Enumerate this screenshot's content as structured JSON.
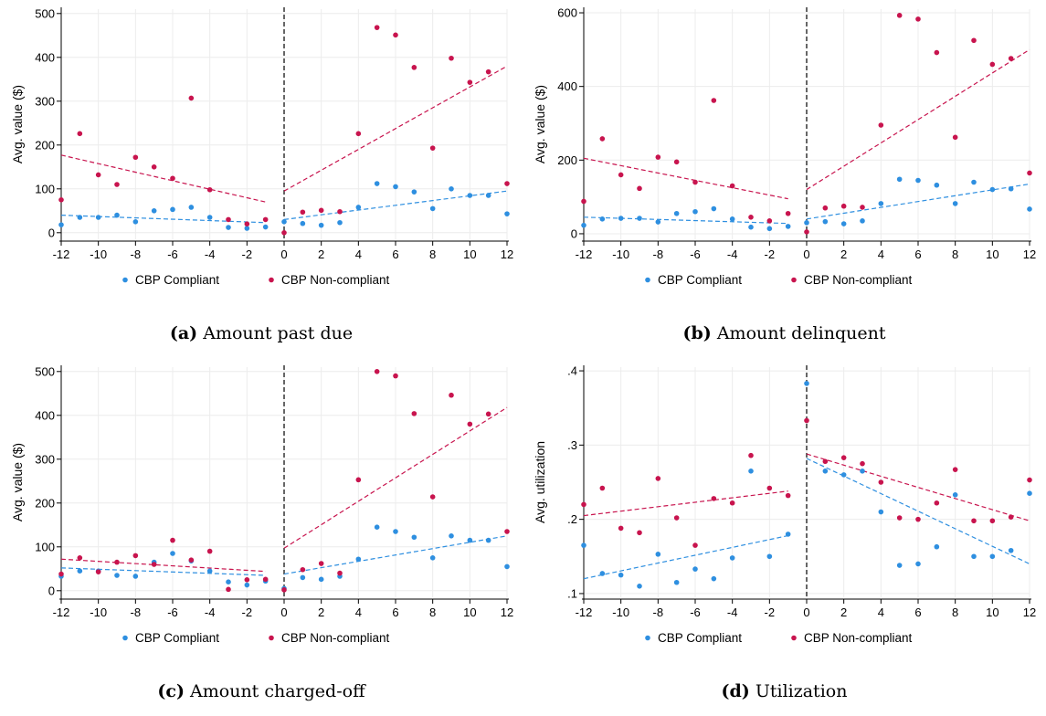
{
  "colors": {
    "compliant": "#2e8fe0",
    "noncompliant": "#c8144e",
    "grid": "#ececec",
    "axis": "#000000"
  },
  "panels": [
    {
      "label": "(a)",
      "title": "Amount past due",
      "chart_data": {
        "type": "scatter",
        "ylabel": "Avg. value ($)",
        "xlim": [
          -12,
          12
        ],
        "ylim": [
          -15,
          510
        ],
        "xticks": [
          -12,
          -10,
          -8,
          -6,
          -4,
          -2,
          0,
          2,
          4,
          6,
          8,
          10,
          12
        ],
        "yticks": [
          0,
          100,
          200,
          300,
          400,
          500
        ],
        "ytick_labels": [
          "0",
          "100",
          "200",
          "300",
          "400",
          "500"
        ],
        "cutoff": 0,
        "series": [
          {
            "name": "CBP Compliant",
            "color_key": "compliant",
            "x": [
              -12,
              -11,
              -10,
              -9,
              -8,
              -7,
              -6,
              -5,
              -4,
              -3,
              -2,
              -1,
              0,
              1,
              2,
              3,
              4,
              5,
              6,
              7,
              8,
              9,
              10,
              11,
              12
            ],
            "y": [
              18,
              35,
              35,
              40,
              25,
              50,
              53,
              58,
              35,
              12,
              10,
              13,
              25,
              21,
              17,
              23,
              58,
              112,
              105,
              93,
              55,
              100,
              85,
              85,
              43
            ],
            "fit": [
              [
                -12,
                40
              ],
              [
                -1,
                23
              ],
              [
                0,
                30
              ],
              [
                12,
                95
              ]
            ]
          },
          {
            "name": "CBP Non-compliant",
            "color_key": "noncompliant",
            "x": [
              -12,
              -11,
              -10,
              -9,
              -8,
              -7,
              -6,
              -5,
              -4,
              -3,
              -2,
              -1,
              0,
              1,
              2,
              3,
              4,
              5,
              6,
              7,
              8,
              9,
              10,
              11,
              12
            ],
            "y": [
              75,
              226,
              132,
              110,
              172,
              150,
              124,
              307,
              98,
              30,
              20,
              30,
              0,
              47,
              51,
              48,
              226,
              468,
              451,
              377,
              193,
              398,
              343,
              367,
              112
            ],
            "fit": [
              [
                -12,
                177
              ],
              [
                -1,
                70
              ],
              [
                0,
                95
              ],
              [
                12,
                380
              ]
            ]
          }
        ]
      }
    },
    {
      "label": "(b)",
      "title": "Amount delinquent",
      "chart_data": {
        "type": "scatter",
        "ylabel": "Avg. value ($)",
        "xlim": [
          -12,
          12
        ],
        "ylim": [
          -15,
          610
        ],
        "xticks": [
          -12,
          -10,
          -8,
          -6,
          -4,
          -2,
          0,
          2,
          4,
          6,
          8,
          10,
          12
        ],
        "yticks": [
          0,
          200,
          400,
          600
        ],
        "ytick_labels": [
          "0",
          "200",
          "400",
          "600"
        ],
        "cutoff": 0,
        "series": [
          {
            "name": "CBP Compliant",
            "color_key": "compliant",
            "x": [
              -12,
              -11,
              -10,
              -9,
              -8,
              -7,
              -6,
              -5,
              -4,
              -3,
              -2,
              -1,
              0,
              1,
              2,
              3,
              4,
              5,
              6,
              7,
              8,
              9,
              10,
              11,
              12
            ],
            "y": [
              23,
              40,
              42,
              42,
              32,
              55,
              60,
              68,
              40,
              18,
              14,
              20,
              30,
              33,
              27,
              35,
              82,
              148,
              145,
              132,
              82,
              140,
              120,
              122,
              67
            ],
            "fit": [
              [
                -12,
                45
              ],
              [
                -1,
                28
              ],
              [
                0,
                40
              ],
              [
                12,
                135
              ]
            ]
          },
          {
            "name": "CBP Non-compliant",
            "color_key": "noncompliant",
            "x": [
              -12,
              -11,
              -10,
              -9,
              -8,
              -7,
              -6,
              -5,
              -4,
              -3,
              -2,
              -1,
              0,
              1,
              2,
              3,
              4,
              5,
              6,
              7,
              8,
              9,
              10,
              11,
              12
            ],
            "y": [
              88,
              258,
              160,
              123,
              208,
              195,
              140,
              362,
              130,
              45,
              35,
              55,
              5,
              70,
              75,
              72,
              295,
              593,
              583,
              492,
              262,
              525,
              460,
              476,
              165
            ],
            "fit": [
              [
                -12,
                205
              ],
              [
                -1,
                95
              ],
              [
                0,
                120
              ],
              [
                12,
                500
              ]
            ]
          }
        ]
      }
    },
    {
      "label": "(c)",
      "title": "Amount charged-off",
      "chart_data": {
        "type": "scatter",
        "ylabel": "Avg. value ($)",
        "xlim": [
          -12,
          12
        ],
        "ylim": [
          -15,
          510
        ],
        "xticks": [
          -12,
          -10,
          -8,
          -6,
          -4,
          -2,
          0,
          2,
          4,
          6,
          8,
          10,
          12
        ],
        "yticks": [
          0,
          100,
          200,
          300,
          400,
          500
        ],
        "ytick_labels": [
          "0",
          "100",
          "200",
          "300",
          "400",
          "500"
        ],
        "cutoff": 0,
        "series": [
          {
            "name": "CBP Compliant",
            "color_key": "compliant",
            "x": [
              -12,
              -11,
              -10,
              -9,
              -8,
              -7,
              -6,
              -5,
              -4,
              -3,
              -2,
              -1,
              0,
              1,
              2,
              3,
              4,
              5,
              6,
              7,
              8,
              9,
              10,
              11,
              12
            ],
            "y": [
              33,
              45,
              45,
              35,
              33,
              65,
              85,
              68,
              45,
              20,
              13,
              22,
              5,
              30,
              26,
              33,
              72,
              145,
              135,
              122,
              75,
              125,
              115,
              115,
              55
            ],
            "fit": [
              [
                -12,
                52
              ],
              [
                -1,
                35
              ],
              [
                0,
                38
              ],
              [
                12,
                125
              ]
            ]
          },
          {
            "name": "CBP Non-compliant",
            "color_key": "noncompliant",
            "x": [
              -12,
              -11,
              -10,
              -9,
              -8,
              -7,
              -6,
              -5,
              -4,
              -3,
              -2,
              -1,
              0,
              1,
              2,
              3,
              4,
              5,
              6,
              7,
              8,
              9,
              10,
              11,
              12
            ],
            "y": [
              38,
              75,
              43,
              65,
              80,
              60,
              115,
              70,
              90,
              3,
              25,
              26,
              2,
              48,
              62,
              40,
              253,
              500,
              490,
              404,
              214,
              446,
              380,
              403,
              135
            ],
            "fit": [
              [
                -12,
                72
              ],
              [
                -1,
                44
              ],
              [
                0,
                97
              ],
              [
                12,
                418
              ]
            ]
          }
        ]
      }
    },
    {
      "label": "(d)",
      "title": "Utilization",
      "chart_data": {
        "type": "scatter",
        "ylabel": "Avg. utilization",
        "xlim": [
          -12,
          12
        ],
        "ylim": [
          0.095,
          0.405
        ],
        "xticks": [
          -12,
          -10,
          -8,
          -6,
          -4,
          -2,
          0,
          2,
          4,
          6,
          8,
          10,
          12
        ],
        "yticks": [
          0.1,
          0.2,
          0.3,
          0.4
        ],
        "ytick_labels": [
          ".1",
          ".2",
          ".3",
          ".4"
        ],
        "cutoff": 0,
        "series": [
          {
            "name": "CBP Compliant",
            "color_key": "compliant",
            "x": [
              -12,
              -11,
              -10,
              -9,
              -8,
              -7,
              -6,
              -5,
              -4,
              -3,
              -2,
              -1,
              0,
              1,
              2,
              3,
              4,
              5,
              6,
              7,
              8,
              9,
              10,
              11,
              12
            ],
            "y": [
              0.165,
              0.127,
              0.125,
              0.11,
              0.153,
              0.115,
              0.133,
              0.12,
              0.148,
              0.265,
              0.15,
              0.18,
              0.383,
              0.265,
              0.26,
              0.265,
              0.21,
              0.138,
              0.14,
              0.163,
              0.233,
              0.15,
              0.15,
              0.158,
              0.235
            ],
            "fit": [
              [
                -12,
                0.12
              ],
              [
                -1,
                0.178
              ],
              [
                0,
                0.282
              ],
              [
                12,
                0.14
              ]
            ]
          },
          {
            "name": "CBP Non-compliant",
            "color_key": "noncompliant",
            "x": [
              -12,
              -11,
              -10,
              -9,
              -8,
              -7,
              -6,
              -5,
              -4,
              -3,
              -2,
              -1,
              0,
              1,
              2,
              3,
              4,
              5,
              6,
              7,
              8,
              9,
              10,
              11,
              12
            ],
            "y": [
              0.22,
              0.242,
              0.188,
              0.182,
              0.255,
              0.202,
              0.165,
              0.228,
              0.222,
              0.286,
              0.242,
              0.232,
              0.333,
              0.278,
              0.283,
              0.275,
              0.25,
              0.202,
              0.2,
              0.222,
              0.267,
              0.198,
              0.198,
              0.203,
              0.253
            ],
            "fit": [
              [
                -12,
                0.205
              ],
              [
                -1,
                0.238
              ],
              [
                0,
                0.288
              ],
              [
                12,
                0.198
              ]
            ]
          }
        ]
      }
    }
  ]
}
